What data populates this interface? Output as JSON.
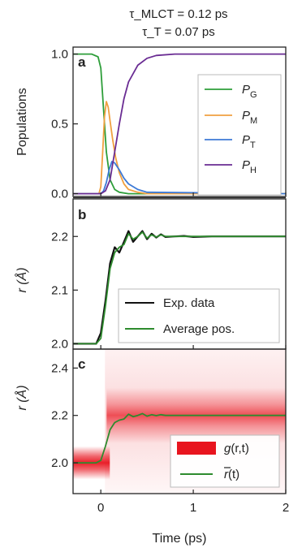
{
  "header": {
    "title_lines": [
      "τ_MLCT = 0.12 ps",
      "τ_T = 0.07 ps"
    ]
  },
  "colors": {
    "P_G": "#2e9e3a",
    "P_M": "#f0a040",
    "P_T": "#3d7ad6",
    "P_H": "#6a2c93",
    "exp": "#111111",
    "avg": "#2e8b2e",
    "density": "#e8141e"
  },
  "chart_data": [
    {
      "panel": "a",
      "type": "line",
      "ylabel": "Populations",
      "xlim": [
        -0.3,
        2.0
      ],
      "ylim": [
        -0.02,
        1.05
      ],
      "yticks": [
        0.0,
        0.5,
        1.0
      ],
      "ytick_labels": [
        "0.0",
        "0.5",
        "1.0"
      ],
      "legend_position": "right",
      "series": [
        {
          "name": "P_G",
          "label_main": "P",
          "label_sub": "G",
          "color": "#2e9e3a",
          "x": [
            -0.3,
            -0.1,
            -0.03,
            0.0,
            0.03,
            0.06,
            0.1,
            0.15,
            0.2,
            0.3,
            0.5,
            1.0,
            2.0
          ],
          "y": [
            1.0,
            1.0,
            0.98,
            0.9,
            0.6,
            0.3,
            0.1,
            0.03,
            0.01,
            0.0,
            0.0,
            0.0,
            0.0
          ]
        },
        {
          "name": "P_M",
          "label_main": "P",
          "label_sub": "M",
          "color": "#f0a040",
          "x": [
            -0.3,
            -0.02,
            0.0,
            0.02,
            0.04,
            0.06,
            0.08,
            0.1,
            0.13,
            0.16,
            0.2,
            0.25,
            0.3,
            0.4,
            0.5,
            2.0
          ],
          "y": [
            0.0,
            0.0,
            0.05,
            0.3,
            0.55,
            0.66,
            0.62,
            0.52,
            0.38,
            0.26,
            0.15,
            0.07,
            0.03,
            0.01,
            0.0,
            0.0
          ]
        },
        {
          "name": "P_T",
          "label_main": "P",
          "label_sub": "T",
          "color": "#3d7ad6",
          "x": [
            -0.3,
            0.0,
            0.03,
            0.06,
            0.09,
            0.12,
            0.15,
            0.2,
            0.25,
            0.3,
            0.4,
            0.5,
            2.0
          ],
          "y": [
            0.0,
            0.0,
            0.02,
            0.08,
            0.17,
            0.23,
            0.22,
            0.17,
            0.11,
            0.07,
            0.03,
            0.01,
            0.0
          ]
        },
        {
          "name": "P_H",
          "label_main": "P",
          "label_sub": "H",
          "color": "#6a2c93",
          "x": [
            -0.3,
            0.0,
            0.05,
            0.1,
            0.15,
            0.2,
            0.25,
            0.3,
            0.4,
            0.5,
            0.6,
            0.8,
            1.0,
            2.0
          ],
          "y": [
            0.0,
            0.0,
            0.02,
            0.1,
            0.3,
            0.5,
            0.68,
            0.8,
            0.92,
            0.97,
            0.99,
            1.0,
            1.0,
            1.0
          ]
        }
      ]
    },
    {
      "panel": "b",
      "type": "line",
      "ylabel": "r (Å)",
      "xlim": [
        -0.3,
        2.0
      ],
      "ylim": [
        1.99,
        2.27
      ],
      "yticks": [
        2.0,
        2.1,
        2.2
      ],
      "ytick_labels": [
        "2.0",
        "2.1",
        "2.2"
      ],
      "legend_position": "bottom-right",
      "series": [
        {
          "name": "Exp. data",
          "color": "#111111",
          "x": [
            -0.3,
            -0.05,
            0.0,
            0.05,
            0.1,
            0.15,
            0.2,
            0.25,
            0.3,
            0.35,
            0.4,
            0.45,
            0.5,
            0.55,
            0.6,
            0.65,
            0.7,
            0.8,
            0.9,
            1.0,
            1.2,
            1.4,
            1.6,
            1.8,
            2.0
          ],
          "y": [
            2.0,
            2.0,
            2.02,
            2.08,
            2.15,
            2.18,
            2.17,
            2.19,
            2.21,
            2.19,
            2.2,
            2.21,
            2.195,
            2.205,
            2.198,
            2.204,
            2.199,
            2.2,
            2.201,
            2.199,
            2.2,
            2.2,
            2.2,
            2.2,
            2.2
          ]
        },
        {
          "name": "Average pos.",
          "color": "#2e8b2e",
          "x": [
            -0.3,
            -0.05,
            0.0,
            0.05,
            0.1,
            0.15,
            0.2,
            0.25,
            0.3,
            0.35,
            0.4,
            0.45,
            0.5,
            0.55,
            0.6,
            0.65,
            0.7,
            0.8,
            0.9,
            1.0,
            1.2,
            1.4,
            1.6,
            1.8,
            2.0
          ],
          "y": [
            2.0,
            2.0,
            2.01,
            2.07,
            2.14,
            2.17,
            2.18,
            2.185,
            2.205,
            2.195,
            2.2,
            2.208,
            2.197,
            2.203,
            2.199,
            2.203,
            2.2,
            2.2,
            2.2,
            2.2,
            2.2,
            2.2,
            2.2,
            2.2,
            2.2
          ]
        }
      ]
    },
    {
      "panel": "c",
      "type": "heatmap",
      "ylabel": "r (Å)",
      "xlabel": "Time (ps)",
      "xlim": [
        -0.3,
        2.0
      ],
      "ylim": [
        1.87,
        2.48
      ],
      "xticks": [
        0,
        1,
        2
      ],
      "xtick_labels": [
        "0",
        "1",
        "2"
      ],
      "yticks": [
        2.0,
        2.2,
        2.4
      ],
      "ytick_labels": [
        "2.0",
        "2.2",
        "2.4"
      ],
      "legend_position": "bottom-right",
      "density": {
        "name": "g(r,t)",
        "label_main": "g",
        "label_args": "(r,t)",
        "center_before": 2.0,
        "center_after": 2.2,
        "width_before": 0.05,
        "width_after": 0.09,
        "transition_time": 0.08
      },
      "series": [
        {
          "name": "r̄(t)",
          "label_main": "r",
          "label_args": "(t)",
          "color": "#2e8b2e",
          "x": [
            -0.3,
            -0.05,
            0.0,
            0.05,
            0.1,
            0.15,
            0.2,
            0.25,
            0.3,
            0.35,
            0.4,
            0.45,
            0.5,
            0.55,
            0.6,
            0.65,
            0.7,
            0.8,
            0.9,
            1.0,
            1.2,
            1.4,
            1.6,
            1.8,
            2.0
          ],
          "y": [
            2.0,
            2.0,
            2.01,
            2.07,
            2.14,
            2.17,
            2.18,
            2.185,
            2.205,
            2.195,
            2.2,
            2.208,
            2.197,
            2.203,
            2.199,
            2.203,
            2.2,
            2.2,
            2.2,
            2.2,
            2.2,
            2.2,
            2.2,
            2.2,
            2.2
          ]
        }
      ]
    }
  ]
}
